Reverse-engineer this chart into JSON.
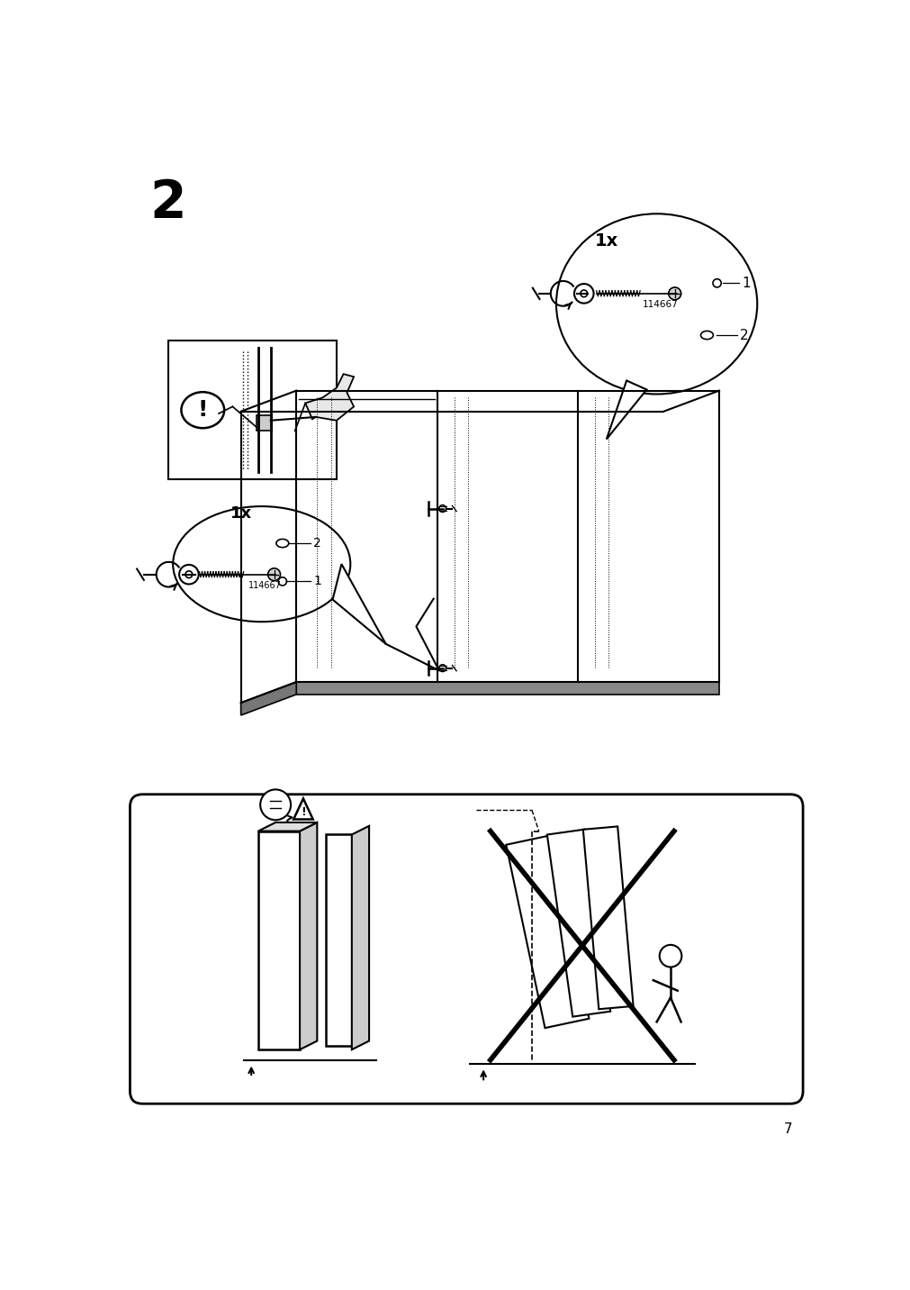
{
  "bg_color": "#ffffff",
  "line_color": "#000000",
  "step_number": "2",
  "page_number": "7",
  "part_number": "114667",
  "quantity_1x": "1x",
  "label1": "1",
  "label2": "2"
}
